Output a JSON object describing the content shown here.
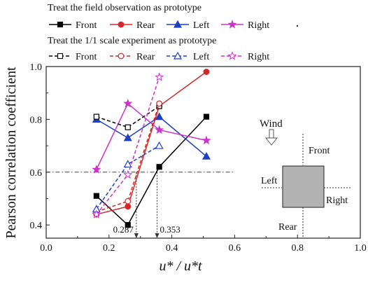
{
  "chart_data": {
    "type": "line",
    "xlabel": "u* / u*t",
    "ylabel": "Pearson correlation coefficient",
    "xlim": [
      0.0,
      1.0
    ],
    "ylim": [
      0.35,
      1.0
    ],
    "xticks": [
      "0.0",
      "0.2",
      "0.4",
      "0.6",
      "0.8",
      "1.0"
    ],
    "yticks": [
      "0.4",
      "0.6",
      "0.8",
      "1.0"
    ],
    "legend": {
      "position": "top",
      "group_titles": [
        "Treat the field observation as prototype",
        "Treat the 1/1 scale experiment as prototype"
      ]
    },
    "series": [
      {
        "name": "Front",
        "group": "field",
        "color": "#000000",
        "marker": "square-filled",
        "dash": false,
        "x": [
          0.16,
          0.26,
          0.36,
          0.51
        ],
        "y": [
          0.51,
          0.4,
          0.62,
          0.81
        ]
      },
      {
        "name": "Rear",
        "group": "field",
        "color": "#d62728",
        "marker": "circle-filled",
        "dash": false,
        "x": [
          0.16,
          0.26,
          0.36,
          0.51
        ],
        "y": [
          0.44,
          0.47,
          0.85,
          0.98
        ]
      },
      {
        "name": "Left",
        "group": "field",
        "color": "#1f3fbf",
        "marker": "triangle-filled",
        "dash": false,
        "x": [
          0.16,
          0.26,
          0.36,
          0.51
        ],
        "y": [
          0.8,
          0.73,
          0.81,
          0.66
        ]
      },
      {
        "name": "Right",
        "group": "field",
        "color": "#cc33cc",
        "marker": "star-filled",
        "dash": false,
        "x": [
          0.16,
          0.26,
          0.36,
          0.51
        ],
        "y": [
          0.61,
          0.86,
          0.76,
          0.72
        ]
      },
      {
        "name": "Front",
        "group": "scale",
        "color": "#000000",
        "marker": "square-open",
        "dash": true,
        "x": [
          0.16,
          0.26,
          0.36
        ],
        "y": [
          0.81,
          0.77,
          0.85
        ]
      },
      {
        "name": "Rear",
        "group": "scale",
        "color": "#d62728",
        "marker": "circle-open",
        "dash": true,
        "x": [
          0.16,
          0.26,
          0.36
        ],
        "y": [
          0.45,
          0.49,
          0.86
        ]
      },
      {
        "name": "Left",
        "group": "scale",
        "color": "#1f3fbf",
        "marker": "triangle-open",
        "dash": true,
        "x": [
          0.16,
          0.26,
          0.36
        ],
        "y": [
          0.46,
          0.63,
          0.7
        ]
      },
      {
        "name": "Right",
        "group": "scale",
        "color": "#cc33cc",
        "marker": "star-open",
        "dash": true,
        "x": [
          0.16,
          0.26,
          0.36
        ],
        "y": [
          0.44,
          0.59,
          0.96
        ]
      }
    ],
    "reference_line": {
      "y": 0.6,
      "x_range": [
        0.0,
        0.6
      ]
    },
    "annotations": [
      {
        "text": "0.287",
        "x": 0.287
      },
      {
        "text": "0.353",
        "x": 0.353
      }
    ],
    "inset": {
      "wind_label": "Wind",
      "labels": {
        "front": "Front",
        "left": "Left",
        "right": "Right",
        "rear": "Rear"
      }
    }
  }
}
